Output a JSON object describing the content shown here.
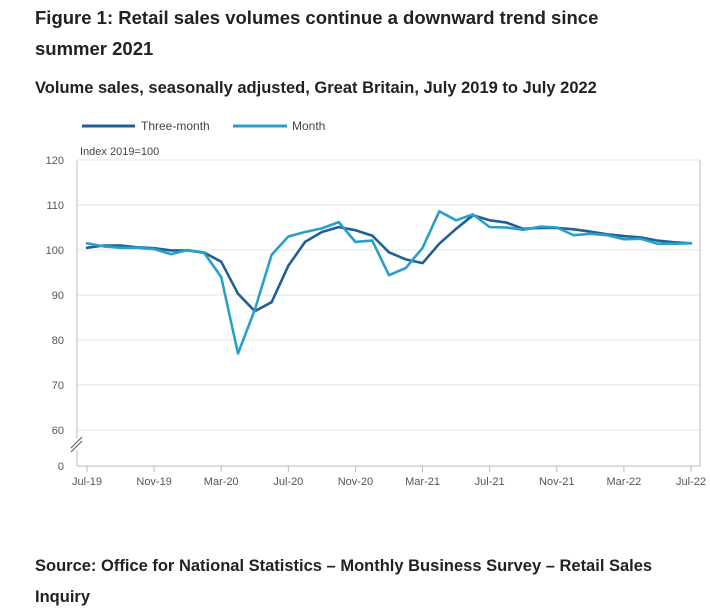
{
  "header": {
    "title": "Figure 1: Retail sales volumes continue a downward trend since summer 2021",
    "subtitle": "Volume sales, seasonally adjusted, Great Britain, July 2019 to July 2022"
  },
  "footer": {
    "source": "Source: Office for National Statistics – Monthly Business Survey – Retail Sales Inquiry"
  },
  "colors": {
    "three_month": "#206095",
    "month": "#27a0cc",
    "axis": "#bbbbbb",
    "gridline": "#e6e6e6"
  },
  "chart_data": {
    "type": "line",
    "unit_label": "Index 2019=100",
    "legend_position": "top-left",
    "x": [
      "Jul-19",
      "Aug-19",
      "Sep-19",
      "Oct-19",
      "Nov-19",
      "Dec-19",
      "Jan-20",
      "Feb-20",
      "Mar-20",
      "Apr-20",
      "May-20",
      "Jun-20",
      "Jul-20",
      "Aug-20",
      "Sep-20",
      "Oct-20",
      "Nov-20",
      "Dec-20",
      "Jan-21",
      "Feb-21",
      "Mar-21",
      "Apr-21",
      "May-21",
      "Jun-21",
      "Jul-21",
      "Aug-21",
      "Sep-21",
      "Oct-21",
      "Nov-21",
      "Dec-21",
      "Jan-22",
      "Feb-22",
      "Mar-22",
      "Apr-22",
      "May-22",
      "Jun-22",
      "Jul-22"
    ],
    "x_tick_labels": [
      "Jul-19",
      "Nov-19",
      "Mar-20",
      "Jul-20",
      "Nov-20",
      "Mar-21",
      "Jul-21",
      "Nov-21",
      "Mar-22",
      "Jul-22"
    ],
    "y_ticks": [
      0,
      60,
      70,
      80,
      90,
      100,
      110,
      120
    ],
    "y_axis_break": true,
    "ylim": [
      55,
      120
    ],
    "series": [
      {
        "name": "Three-month",
        "values": [
          100.5,
          101.0,
          101.0,
          100.6,
          100.4,
          99.9,
          99.9,
          99.4,
          97.4,
          90.3,
          86.4,
          88.4,
          96.5,
          101.8,
          104.0,
          105.1,
          104.4,
          103.2,
          99.5,
          97.9,
          97.1,
          101.4,
          104.7,
          107.7,
          106.6,
          106.1,
          104.7,
          104.9,
          104.9,
          104.6,
          104.1,
          103.5,
          103.1,
          102.8,
          102.1,
          101.7,
          101.5
        ]
      },
      {
        "name": "Month",
        "values": [
          101.5,
          100.8,
          100.5,
          100.5,
          100.2,
          99.1,
          100.0,
          99.3,
          94.0,
          77.0,
          86.7,
          98.9,
          103.0,
          104.0,
          104.8,
          106.2,
          101.8,
          102.1,
          94.4,
          96.0,
          100.5,
          108.6,
          106.6,
          107.9,
          105.1,
          105.0,
          104.5,
          105.2,
          105.0,
          103.3,
          103.6,
          103.3,
          102.4,
          102.5,
          101.4,
          101.4,
          101.5
        ]
      }
    ]
  }
}
